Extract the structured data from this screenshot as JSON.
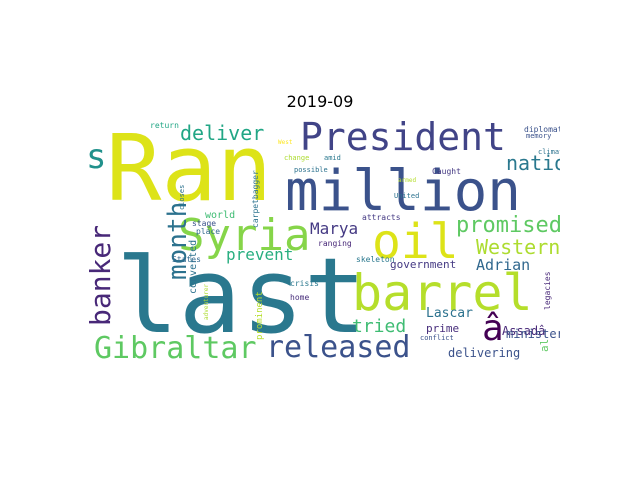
{
  "chart_data": {
    "type": "wordcloud",
    "title": "2019-09",
    "words": [
      {
        "text": "Ran",
        "color": "#dde318"
      },
      {
        "text": "last",
        "color": "#2a788e"
      },
      {
        "text": "million",
        "color": "#3b528b"
      },
      {
        "text": "barrel",
        "color": "#b5de2b"
      },
      {
        "text": "oil",
        "color": "#dde318"
      },
      {
        "text": "President",
        "color": "#414487"
      },
      {
        "text": "Syria",
        "color": "#86d549"
      },
      {
        "text": "Gibraltar",
        "color": "#5ec962"
      },
      {
        "text": "released",
        "color": "#3b528b"
      },
      {
        "text": "banker",
        "color": "#482878"
      },
      {
        "text": "month",
        "color": "#2c728e"
      },
      {
        "text": "s",
        "color": "#21918c"
      },
      {
        "text": "â",
        "color": "#440154"
      },
      {
        "text": "promised",
        "color": "#5ec962"
      },
      {
        "text": "Western",
        "color": "#addc30"
      },
      {
        "text": "deliver",
        "color": "#21a685"
      },
      {
        "text": "nation",
        "color": "#2a788e"
      },
      {
        "text": "tried",
        "color": "#3fbc73"
      },
      {
        "text": "Marya",
        "color": "#443983"
      },
      {
        "text": "prevent",
        "color": "#28ae80"
      },
      {
        "text": "Adrian",
        "color": "#31688e"
      },
      {
        "text": "government",
        "color": "#443983"
      },
      {
        "text": "Lascar",
        "color": "#2c728e"
      },
      {
        "text": "delivering",
        "color": "#3b528b"
      },
      {
        "text": "Assadâ",
        "color": "#482878"
      },
      {
        "text": "minister",
        "color": "#3b528b"
      },
      {
        "text": "prime",
        "color": "#472d7b"
      },
      {
        "text": "al",
        "color": "#5ec962"
      },
      {
        "text": "world",
        "color": "#3fbc73"
      },
      {
        "text": "converted",
        "color": "#2c728e"
      },
      {
        "text": "prominent",
        "color": "#b5de2b"
      },
      {
        "text": "carpetbagger",
        "color": "#2c728e"
      },
      {
        "text": "ranging",
        "color": "#482878"
      },
      {
        "text": "attracts",
        "color": "#443983"
      },
      {
        "text": "skeleton",
        "color": "#2a788e"
      },
      {
        "text": "crisis",
        "color": "#2a788e"
      },
      {
        "text": "home",
        "color": "#472d7b"
      },
      {
        "text": "conflict",
        "color": "#3b528b"
      },
      {
        "text": "legacies",
        "color": "#482878"
      },
      {
        "text": "stage",
        "color": "#3b528b"
      },
      {
        "text": "place",
        "color": "#31688e"
      },
      {
        "text": "States",
        "color": "#31688e"
      },
      {
        "text": "closes",
        "color": "#2c728e"
      },
      {
        "text": "adventurer",
        "color": "#addc30"
      },
      {
        "text": "return",
        "color": "#21a685"
      },
      {
        "text": "West",
        "color": "#fde725"
      },
      {
        "text": "change",
        "color": "#addc30"
      },
      {
        "text": "amid",
        "color": "#2a788e"
      },
      {
        "text": "possible",
        "color": "#2c728e"
      },
      {
        "text": "armed",
        "color": "#b5de2b"
      },
      {
        "text": "Caught",
        "color": "#443983"
      },
      {
        "text": "United",
        "color": "#2c728e"
      },
      {
        "text": "diplomatic",
        "color": "#3b528b"
      },
      {
        "text": "memory",
        "color": "#3b528b"
      },
      {
        "text": "climate",
        "color": "#2c728e"
      }
    ]
  }
}
